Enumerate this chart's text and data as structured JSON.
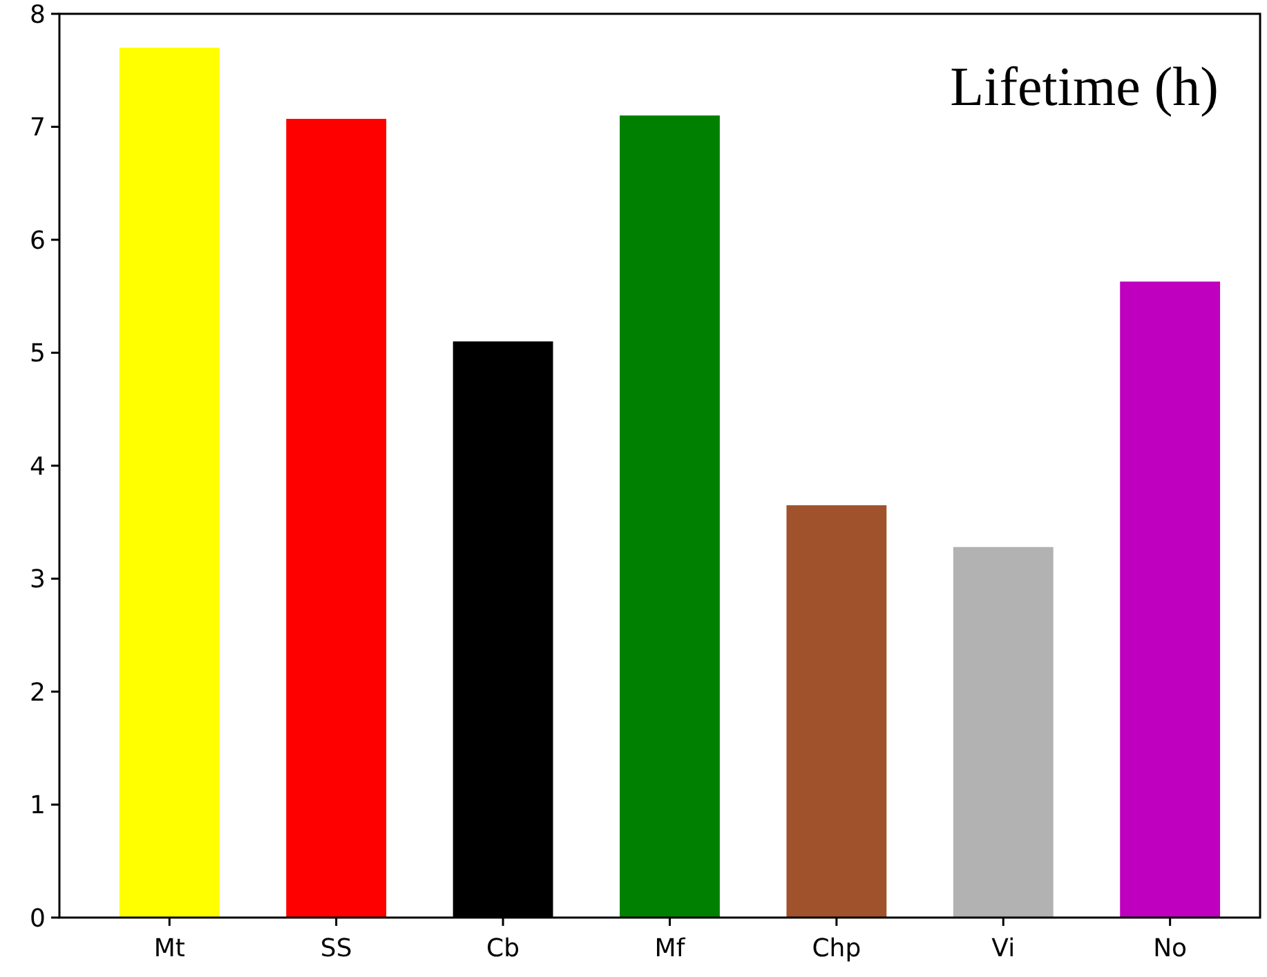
{
  "chart_data": {
    "type": "bar",
    "annotations": [
      "Lifetime (h)"
    ],
    "categories": [
      "Mt",
      "SS",
      "Cb",
      "Mf",
      "Chp",
      "Vi",
      "No"
    ],
    "values": [
      7.7,
      7.07,
      5.1,
      7.1,
      3.65,
      3.28,
      5.63
    ],
    "colors": [
      "#ffff00",
      "#ff0000",
      "#000000",
      "#008000",
      "#a0522d",
      "#b2b2b2",
      "#bf00bf"
    ],
    "ylim": [
      0,
      8
    ],
    "yticks": [
      0,
      1,
      2,
      3,
      4,
      5,
      6,
      7,
      8
    ],
    "grid": false
  }
}
